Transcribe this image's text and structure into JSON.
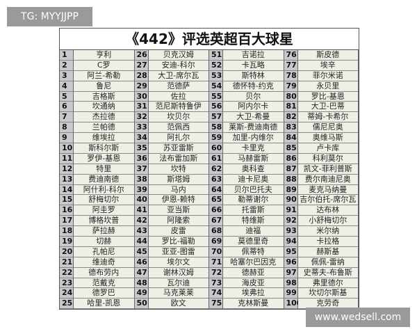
{
  "watermark_top": "TG: MYYJJPP",
  "watermark_bottom": "www.wedsell.com",
  "title": "《442》评选英超百大球星",
  "players": [
    "亨利",
    "C罗",
    "阿兰-希勒",
    "鲁尼",
    "吉格斯",
    "坎通纳",
    "杰拉德",
    "兰帕德",
    "维埃拉",
    "斯科尔斯",
    "罗伊-基恩",
    "特里",
    "费迪南德",
    "阿什利-科尔",
    "舒梅切尔",
    "阿圭罗",
    "博格坎普",
    "萨拉赫",
    "切赫",
    "孔帕尼",
    "维迪奇",
    "德布劳内",
    "范戴克",
    "德罗巴",
    "哈里-凯恩",
    "贝克汉姆",
    "安迪-科尔",
    "大卫-席尔瓦",
    "范德萨",
    "佐拉",
    "范尼斯特鲁伊",
    "坎贝尔",
    "范佩西",
    "阿扎尔",
    "苏亚雷斯",
    "法布雷加斯",
    "坎特",
    "斯塔姆",
    "马内",
    "伊恩-赖特",
    "亚当斯",
    "阿隆索",
    "皮雷",
    "罗比-福勒",
    "亚亚-图雷",
    "埃尔文",
    "谢林汉姆",
    "瓦尔迪",
    "马克莱莱",
    "欧文",
    "吉诺拉",
    "卡瓦略",
    "斯特林",
    "德怀特-约克",
    "贝尔",
    "阿内尔卡",
    "大卫-希曼",
    "莱斯-费迪南德",
    "加里-内维尔",
    "卡里克",
    "马赫雷斯",
    "奥科查",
    "迪卡尼奥",
    "贝尔巴托夫",
    "勒蒂谢尔",
    "托雷斯",
    "特维斯",
    "迪福",
    "莫德里奇",
    "佩蒂特",
    "哈塞尔巴因克",
    "德赫亚",
    "海皮亚",
    "埃弗拉",
    "克林斯曼",
    "斯皮德",
    "埃辛",
    "菲尔米诺",
    "永贝里",
    "罗比-基恩",
    "大卫-巴蒂",
    "蒂姆-卡希尔",
    "儒尼尼奥",
    "奥维马斯",
    "卢卡库",
    "科利莫尔",
    "凯文-菲利普斯",
    "费尔南迪尼奥",
    "麦克马纳曼",
    "吉尔伯托-席尔瓦",
    "达布林",
    "小舒梅切尔",
    "米尔纳",
    "卡拉格",
    "赫斯基",
    "佩佩-雷纳",
    "史蒂夫-布鲁斯",
    "弗里德尔",
    "坎切尔斯基",
    "克劳奇"
  ]
}
